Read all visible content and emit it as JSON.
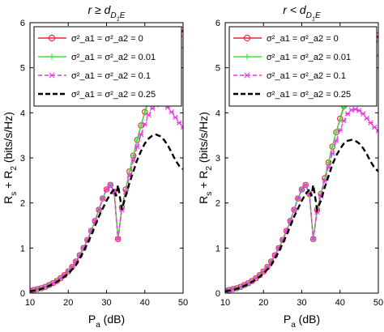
{
  "chart_data": [
    {
      "type": "line",
      "title": "r ≥ d_{D_1E}",
      "xlabel": "P_a (dB)",
      "ylabel": "R_s + R_2 (bits/s/Hz)",
      "xlim": [
        10,
        50
      ],
      "ylim": [
        0,
        6
      ],
      "xticks": [
        "10",
        "20",
        "30",
        "40",
        "50"
      ],
      "yticks": [
        "0",
        "1",
        "2",
        "3",
        "4",
        "5",
        "6"
      ],
      "grid": false,
      "legend": "top-left",
      "series": [
        {
          "name": "σ²_a1 = σ²_a2 = 0",
          "color": "#e8262a",
          "marker": "circle",
          "x": [
            10,
            11,
            12,
            13,
            14,
            15,
            16,
            17,
            18,
            19,
            20,
            21,
            22,
            23,
            24,
            25,
            26,
            27,
            28,
            29,
            30,
            31,
            32,
            33,
            34,
            35,
            36,
            37,
            38,
            39,
            40,
            41,
            42,
            43,
            44,
            45,
            46,
            47,
            48,
            49,
            50
          ],
          "y": [
            0.05,
            0.07,
            0.09,
            0.11,
            0.14,
            0.18,
            0.22,
            0.27,
            0.33,
            0.4,
            0.48,
            0.58,
            0.7,
            0.84,
            1.0,
            1.18,
            1.38,
            1.6,
            1.85,
            2.1,
            2.3,
            2.4,
            2.25,
            1.2,
            1.9,
            2.3,
            2.7,
            3.05,
            3.4,
            3.72,
            4.02,
            4.3,
            4.55,
            4.78,
            4.98,
            5.15,
            5.3,
            5.45,
            5.58,
            5.7,
            5.85
          ]
        },
        {
          "name": "σ²_a1 = σ²_a2 = 0.01",
          "color": "#3ce63c",
          "marker": "plus",
          "x": [
            10,
            11,
            12,
            13,
            14,
            15,
            16,
            17,
            18,
            19,
            20,
            21,
            22,
            23,
            24,
            25,
            26,
            27,
            28,
            29,
            30,
            31,
            32,
            33,
            34,
            35,
            36,
            37,
            38,
            39,
            40,
            41,
            42,
            43,
            44,
            45,
            46,
            47,
            48,
            49,
            50
          ],
          "y": [
            0.05,
            0.07,
            0.09,
            0.11,
            0.14,
            0.18,
            0.22,
            0.27,
            0.33,
            0.4,
            0.48,
            0.58,
            0.7,
            0.84,
            1.0,
            1.18,
            1.38,
            1.6,
            1.85,
            2.1,
            2.3,
            2.4,
            2.25,
            1.2,
            1.9,
            2.3,
            2.7,
            3.05,
            3.4,
            3.72,
            4.0,
            4.27,
            4.5,
            4.7,
            4.87,
            5.0,
            5.12,
            5.22,
            5.32,
            5.4,
            5.45
          ]
        },
        {
          "name": "σ²_a1 = σ²_a2 = 0.1",
          "color": "#e43ce4",
          "marker": "x",
          "dash": "dashed",
          "x": [
            10,
            11,
            12,
            13,
            14,
            15,
            16,
            17,
            18,
            19,
            20,
            21,
            22,
            23,
            24,
            25,
            26,
            27,
            28,
            29,
            30,
            31,
            32,
            33,
            34,
            35,
            36,
            37,
            38,
            39,
            40,
            41,
            42,
            43,
            44,
            45,
            46,
            47,
            48,
            49,
            50
          ],
          "y": [
            0.05,
            0.07,
            0.09,
            0.11,
            0.14,
            0.18,
            0.22,
            0.27,
            0.33,
            0.4,
            0.48,
            0.58,
            0.7,
            0.84,
            1.0,
            1.18,
            1.38,
            1.6,
            1.85,
            2.1,
            2.3,
            2.4,
            2.25,
            1.2,
            1.85,
            2.25,
            2.6,
            2.95,
            3.25,
            3.52,
            3.75,
            3.95,
            4.1,
            4.18,
            4.22,
            4.2,
            4.12,
            4.02,
            3.9,
            3.78,
            3.68
          ]
        },
        {
          "name": "σ²_a1 = σ²_a2 = 0.25",
          "color": "#000000",
          "marker": "none",
          "dash": "dashed",
          "x": [
            10,
            12,
            14,
            16,
            18,
            20,
            22,
            24,
            26,
            28,
            30,
            31,
            32,
            32.5,
            33,
            34,
            35,
            36,
            37,
            38,
            39,
            40,
            41,
            42,
            43,
            44,
            45,
            46,
            47,
            48,
            49,
            50
          ],
          "y": [
            0.04,
            0.07,
            0.12,
            0.2,
            0.3,
            0.43,
            0.62,
            0.92,
            1.28,
            1.7,
            2.05,
            2.2,
            2.3,
            2.15,
            2.4,
            1.85,
            2.15,
            2.45,
            2.7,
            2.95,
            3.15,
            3.32,
            3.43,
            3.5,
            3.52,
            3.48,
            3.4,
            3.28,
            3.12,
            2.95,
            2.82,
            2.75
          ]
        }
      ]
    },
    {
      "type": "line",
      "title": "r < d_{D_1E}",
      "xlabel": "P_a (dB)",
      "ylabel": "R_s + R_2 (bits/s/Hz)",
      "xlim": [
        10,
        50
      ],
      "ylim": [
        0,
        6
      ],
      "xticks": [
        "10",
        "20",
        "30",
        "40",
        "50"
      ],
      "yticks": [
        "0",
        "1",
        "2",
        "3",
        "4",
        "5",
        "6"
      ],
      "grid": false,
      "legend": "top-left",
      "series": [
        {
          "name": "σ²_a1 = σ²_a2 = 0",
          "color": "#e8262a",
          "marker": "circle",
          "x": [
            10,
            11,
            12,
            13,
            14,
            15,
            16,
            17,
            18,
            19,
            20,
            21,
            22,
            23,
            24,
            25,
            26,
            27,
            28,
            29,
            30,
            31,
            32,
            33,
            34,
            35,
            36,
            37,
            38,
            39,
            40,
            41,
            42,
            43,
            44,
            45,
            46,
            47,
            48,
            49,
            50
          ],
          "y": [
            0.05,
            0.07,
            0.09,
            0.11,
            0.14,
            0.18,
            0.22,
            0.27,
            0.33,
            0.4,
            0.48,
            0.58,
            0.7,
            0.84,
            1.0,
            1.18,
            1.38,
            1.6,
            1.85,
            2.1,
            2.3,
            2.4,
            2.2,
            1.2,
            1.85,
            2.2,
            2.55,
            2.9,
            3.25,
            3.57,
            3.87,
            4.15,
            4.4,
            4.62,
            4.82,
            5.0,
            5.15,
            5.3,
            5.45,
            5.58,
            5.72
          ]
        },
        {
          "name": "σ²_a1 = σ²_a2 = 0.01",
          "color": "#3ce63c",
          "marker": "plus",
          "x": [
            10,
            11,
            12,
            13,
            14,
            15,
            16,
            17,
            18,
            19,
            20,
            21,
            22,
            23,
            24,
            25,
            26,
            27,
            28,
            29,
            30,
            31,
            32,
            33,
            34,
            35,
            36,
            37,
            38,
            39,
            40,
            41,
            42,
            43,
            44,
            45,
            46,
            47,
            48,
            49,
            50
          ],
          "y": [
            0.05,
            0.07,
            0.09,
            0.11,
            0.14,
            0.18,
            0.22,
            0.27,
            0.33,
            0.4,
            0.48,
            0.58,
            0.7,
            0.84,
            1.0,
            1.18,
            1.38,
            1.6,
            1.85,
            2.1,
            2.3,
            2.4,
            2.2,
            1.2,
            1.85,
            2.2,
            2.55,
            2.9,
            3.25,
            3.57,
            3.85,
            4.12,
            4.35,
            4.55,
            4.72,
            4.87,
            4.98,
            5.08,
            5.16,
            5.22,
            5.28
          ]
        },
        {
          "name": "σ²_a1 = σ²_a2 = 0.1",
          "color": "#e43ce4",
          "marker": "x",
          "dash": "dashed",
          "x": [
            10,
            11,
            12,
            13,
            14,
            15,
            16,
            17,
            18,
            19,
            20,
            21,
            22,
            23,
            24,
            25,
            26,
            27,
            28,
            29,
            30,
            31,
            32,
            33,
            34,
            35,
            36,
            37,
            38,
            39,
            40,
            41,
            42,
            43,
            44,
            45,
            46,
            47,
            48,
            49,
            50
          ],
          "y": [
            0.05,
            0.07,
            0.09,
            0.11,
            0.14,
            0.18,
            0.22,
            0.27,
            0.33,
            0.4,
            0.48,
            0.58,
            0.7,
            0.84,
            1.0,
            1.18,
            1.38,
            1.6,
            1.85,
            2.1,
            2.3,
            2.4,
            2.2,
            1.2,
            1.8,
            2.15,
            2.5,
            2.8,
            3.1,
            3.38,
            3.62,
            3.82,
            3.98,
            4.06,
            4.08,
            4.05,
            3.98,
            3.88,
            3.78,
            3.68,
            3.6
          ]
        },
        {
          "name": "σ²_a1 = σ²_a2 = 0.25",
          "color": "#000000",
          "marker": "none",
          "dash": "dashed",
          "x": [
            10,
            12,
            14,
            16,
            18,
            20,
            22,
            24,
            26,
            28,
            30,
            31,
            32,
            32.5,
            33,
            34,
            35,
            36,
            37,
            38,
            39,
            40,
            41,
            42,
            43,
            44,
            45,
            46,
            47,
            48,
            49,
            50
          ],
          "y": [
            0.04,
            0.07,
            0.12,
            0.2,
            0.3,
            0.43,
            0.62,
            0.92,
            1.28,
            1.7,
            2.05,
            2.2,
            2.3,
            2.15,
            2.4,
            1.85,
            2.05,
            2.35,
            2.6,
            2.85,
            3.05,
            3.2,
            3.32,
            3.38,
            3.4,
            3.38,
            3.32,
            3.22,
            3.08,
            2.92,
            2.78,
            2.7
          ]
        }
      ]
    }
  ]
}
